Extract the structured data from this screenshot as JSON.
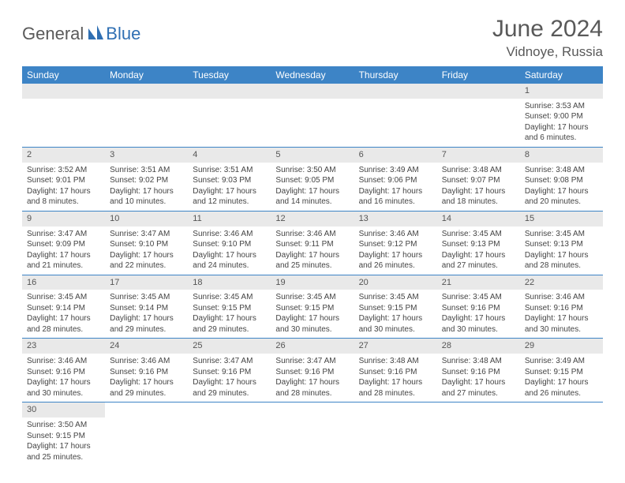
{
  "logo": {
    "text1": "General",
    "text2": "Blue"
  },
  "title": "June 2024",
  "location": "Vidnoye, Russia",
  "colors": {
    "header_bg": "#3d84c6",
    "header_text": "#ffffff",
    "daynum_bg": "#e9e9e9",
    "border": "#3d84c6",
    "text": "#444444",
    "title_text": "#595959"
  },
  "weekdays": [
    "Sunday",
    "Monday",
    "Tuesday",
    "Wednesday",
    "Thursday",
    "Friday",
    "Saturday"
  ],
  "weeks": [
    [
      null,
      null,
      null,
      null,
      null,
      null,
      {
        "d": "1",
        "sr": "3:53 AM",
        "ss": "9:00 PM",
        "dl": "17 hours and 6 minutes."
      }
    ],
    [
      {
        "d": "2",
        "sr": "3:52 AM",
        "ss": "9:01 PM",
        "dl": "17 hours and 8 minutes."
      },
      {
        "d": "3",
        "sr": "3:51 AM",
        "ss": "9:02 PM",
        "dl": "17 hours and 10 minutes."
      },
      {
        "d": "4",
        "sr": "3:51 AM",
        "ss": "9:03 PM",
        "dl": "17 hours and 12 minutes."
      },
      {
        "d": "5",
        "sr": "3:50 AM",
        "ss": "9:05 PM",
        "dl": "17 hours and 14 minutes."
      },
      {
        "d": "6",
        "sr": "3:49 AM",
        "ss": "9:06 PM",
        "dl": "17 hours and 16 minutes."
      },
      {
        "d": "7",
        "sr": "3:48 AM",
        "ss": "9:07 PM",
        "dl": "17 hours and 18 minutes."
      },
      {
        "d": "8",
        "sr": "3:48 AM",
        "ss": "9:08 PM",
        "dl": "17 hours and 20 minutes."
      }
    ],
    [
      {
        "d": "9",
        "sr": "3:47 AM",
        "ss": "9:09 PM",
        "dl": "17 hours and 21 minutes."
      },
      {
        "d": "10",
        "sr": "3:47 AM",
        "ss": "9:10 PM",
        "dl": "17 hours and 22 minutes."
      },
      {
        "d": "11",
        "sr": "3:46 AM",
        "ss": "9:10 PM",
        "dl": "17 hours and 24 minutes."
      },
      {
        "d": "12",
        "sr": "3:46 AM",
        "ss": "9:11 PM",
        "dl": "17 hours and 25 minutes."
      },
      {
        "d": "13",
        "sr": "3:46 AM",
        "ss": "9:12 PM",
        "dl": "17 hours and 26 minutes."
      },
      {
        "d": "14",
        "sr": "3:45 AM",
        "ss": "9:13 PM",
        "dl": "17 hours and 27 minutes."
      },
      {
        "d": "15",
        "sr": "3:45 AM",
        "ss": "9:13 PM",
        "dl": "17 hours and 28 minutes."
      }
    ],
    [
      {
        "d": "16",
        "sr": "3:45 AM",
        "ss": "9:14 PM",
        "dl": "17 hours and 28 minutes."
      },
      {
        "d": "17",
        "sr": "3:45 AM",
        "ss": "9:14 PM",
        "dl": "17 hours and 29 minutes."
      },
      {
        "d": "18",
        "sr": "3:45 AM",
        "ss": "9:15 PM",
        "dl": "17 hours and 29 minutes."
      },
      {
        "d": "19",
        "sr": "3:45 AM",
        "ss": "9:15 PM",
        "dl": "17 hours and 30 minutes."
      },
      {
        "d": "20",
        "sr": "3:45 AM",
        "ss": "9:15 PM",
        "dl": "17 hours and 30 minutes."
      },
      {
        "d": "21",
        "sr": "3:45 AM",
        "ss": "9:16 PM",
        "dl": "17 hours and 30 minutes."
      },
      {
        "d": "22",
        "sr": "3:46 AM",
        "ss": "9:16 PM",
        "dl": "17 hours and 30 minutes."
      }
    ],
    [
      {
        "d": "23",
        "sr": "3:46 AM",
        "ss": "9:16 PM",
        "dl": "17 hours and 30 minutes."
      },
      {
        "d": "24",
        "sr": "3:46 AM",
        "ss": "9:16 PM",
        "dl": "17 hours and 29 minutes."
      },
      {
        "d": "25",
        "sr": "3:47 AM",
        "ss": "9:16 PM",
        "dl": "17 hours and 29 minutes."
      },
      {
        "d": "26",
        "sr": "3:47 AM",
        "ss": "9:16 PM",
        "dl": "17 hours and 28 minutes."
      },
      {
        "d": "27",
        "sr": "3:48 AM",
        "ss": "9:16 PM",
        "dl": "17 hours and 28 minutes."
      },
      {
        "d": "28",
        "sr": "3:48 AM",
        "ss": "9:16 PM",
        "dl": "17 hours and 27 minutes."
      },
      {
        "d": "29",
        "sr": "3:49 AM",
        "ss": "9:15 PM",
        "dl": "17 hours and 26 minutes."
      }
    ],
    [
      {
        "d": "30",
        "sr": "3:50 AM",
        "ss": "9:15 PM",
        "dl": "17 hours and 25 minutes."
      },
      null,
      null,
      null,
      null,
      null,
      null
    ]
  ],
  "labels": {
    "sunrise": "Sunrise:",
    "sunset": "Sunset:",
    "daylight": "Daylight:"
  }
}
